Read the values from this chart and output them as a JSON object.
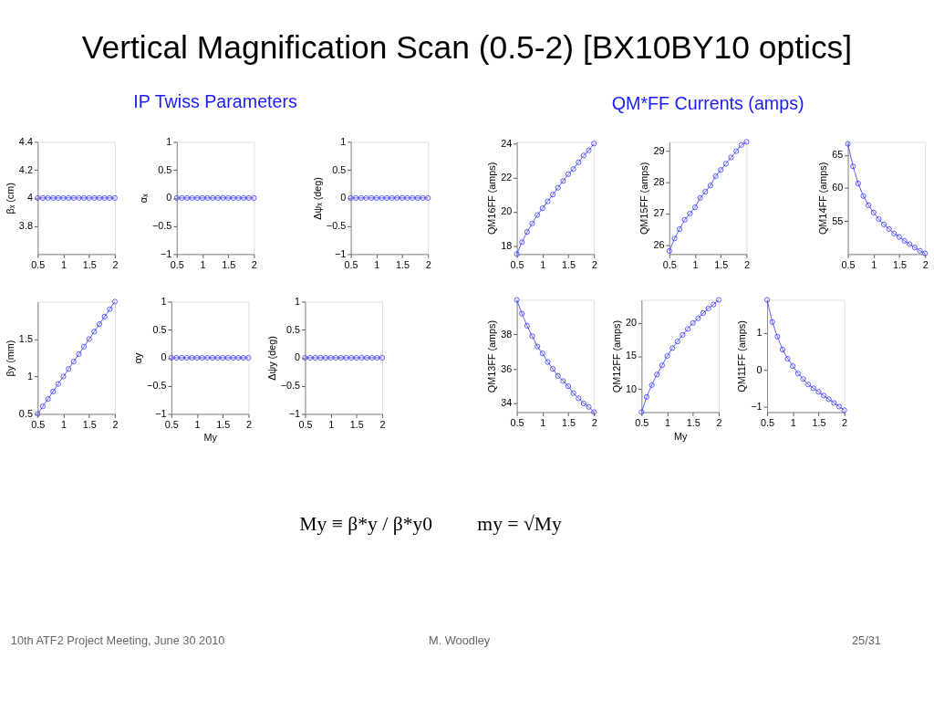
{
  "chart_data": [
    {
      "type": "line",
      "title": "Vertical Magnification Scan (0.5-2) [BX10BY10 optics]",
      "ylabel": "βₓ (cm)",
      "x": [
        0.5,
        0.6,
        0.7,
        0.8,
        0.9,
        1.0,
        1.1,
        1.2,
        1.3,
        1.4,
        1.5,
        1.6,
        1.7,
        1.8,
        1.9,
        2.0
      ],
      "series": [
        {
          "color": "#3333ff",
          "values": [
            4,
            4,
            4,
            4,
            4,
            4,
            4,
            4,
            4,
            4,
            4,
            4,
            4,
            4,
            4,
            4
          ]
        }
      ],
      "xlim": [
        0.5,
        2
      ],
      "xticks": [
        0.5,
        1,
        1.5,
        2
      ],
      "ylim": [
        3.6,
        4.4
      ],
      "yticks": [
        3.8,
        4,
        4.2,
        4.4
      ],
      "marker": "circle",
      "grid": false,
      "annotations": [
        "My ≡ β*y / β*y0",
        "my = √My",
        "10th ATF2 Project Meeting, June 30 2010",
        "M. Woodley",
        "25/31"
      ]
    },
    {
      "type": "line",
      "subtitle": "IP Twiss Parameters",
      "ylabel": "αₓ",
      "x": [
        0.5,
        0.6,
        0.7,
        0.8,
        0.9,
        1.0,
        1.1,
        1.2,
        1.3,
        1.4,
        1.5,
        1.6,
        1.7,
        1.8,
        1.9,
        2.0
      ],
      "series": [
        {
          "color": "#3333ff",
          "values": [
            0,
            0,
            0,
            0,
            0,
            0,
            0,
            0,
            0,
            0,
            0,
            0,
            0,
            0,
            0,
            0
          ]
        }
      ],
      "xlim": [
        0.5,
        2
      ],
      "xticks": [
        0.5,
        1,
        1.5,
        2
      ],
      "ylim": [
        -1,
        1
      ],
      "yticks": [
        -1,
        -0.5,
        0,
        0.5,
        1
      ],
      "marker": "circle",
      "grid": false
    },
    {
      "type": "line",
      "ylabel": "Δψₓ (deg)",
      "x": [
        0.5,
        0.6,
        0.7,
        0.8,
        0.9,
        1.0,
        1.1,
        1.2,
        1.3,
        1.4,
        1.5,
        1.6,
        1.7,
        1.8,
        1.9,
        2.0
      ],
      "series": [
        {
          "color": "#3333ff",
          "values": [
            0,
            0,
            0,
            0,
            0,
            0,
            0,
            0,
            0,
            0,
            0,
            0,
            0,
            0,
            0,
            0
          ]
        }
      ],
      "xlim": [
        0.5,
        2
      ],
      "xticks": [
        0.5,
        1,
        1.5,
        2
      ],
      "ylim": [
        -1,
        1
      ],
      "yticks": [
        -1,
        -0.5,
        0,
        0.5,
        1
      ],
      "marker": "circle",
      "grid": false
    },
    {
      "type": "line",
      "ylabel": "QM16FF (amps)",
      "x": [
        0.5,
        0.6,
        0.7,
        0.8,
        0.9,
        1.0,
        1.1,
        1.2,
        1.3,
        1.4,
        1.5,
        1.6,
        1.7,
        1.8,
        1.9,
        2.0
      ],
      "series": [
        {
          "color": "#3333ff",
          "values": [
            17.5,
            18.2,
            18.8,
            19.3,
            19.8,
            20.2,
            20.6,
            21.0,
            21.4,
            21.8,
            22.2,
            22.5,
            22.9,
            23.3,
            23.6,
            24.0
          ]
        }
      ],
      "xlim": [
        0.5,
        2
      ],
      "xticks": [
        0.5,
        1,
        1.5,
        2
      ],
      "ylim": [
        17.5,
        24.1
      ],
      "yticks": [
        18,
        20,
        22,
        24
      ],
      "marker": "circle",
      "grid": false
    },
    {
      "type": "line",
      "subtitle": "QM*FF Currents (amps)",
      "ylabel": "QM15FF (amps)",
      "x": [
        0.5,
        0.6,
        0.7,
        0.8,
        0.9,
        1.0,
        1.1,
        1.2,
        1.3,
        1.4,
        1.5,
        1.6,
        1.7,
        1.8,
        1.9,
        2.0
      ],
      "series": [
        {
          "color": "#3333ff",
          "values": [
            25.8,
            26.2,
            26.5,
            26.8,
            27.0,
            27.2,
            27.5,
            27.7,
            27.9,
            28.2,
            28.4,
            28.6,
            28.8,
            29.0,
            29.2,
            29.3
          ]
        }
      ],
      "xlim": [
        0.5,
        2
      ],
      "xticks": [
        0.5,
        1,
        1.5,
        2
      ],
      "ylim": [
        25.7,
        29.3
      ],
      "yticks": [
        26,
        27,
        28,
        29
      ],
      "marker": "circle",
      "grid": false
    },
    {
      "type": "line",
      "ylabel": "QM14FF (amps)",
      "x": [
        0.5,
        0.6,
        0.7,
        0.8,
        0.9,
        1.0,
        1.1,
        1.2,
        1.3,
        1.4,
        1.5,
        1.6,
        1.7,
        1.8,
        1.9,
        2.0
      ],
      "series": [
        {
          "color": "#3333ff",
          "values": [
            66.7,
            63.3,
            60.7,
            58.8,
            57.4,
            56.3,
            55.3,
            54.5,
            53.8,
            53.1,
            52.6,
            52.0,
            51.5,
            51.0,
            50.5,
            50.1
          ]
        }
      ],
      "xlim": [
        0.5,
        2
      ],
      "xticks": [
        0.5,
        1,
        1.5,
        2
      ],
      "ylim": [
        50,
        67
      ],
      "yticks": [
        55,
        60,
        65
      ],
      "marker": "circle",
      "grid": false
    },
    {
      "type": "line",
      "ylabel": "βy (mm)",
      "x": [
        0.5,
        0.6,
        0.7,
        0.8,
        0.9,
        1.0,
        1.1,
        1.2,
        1.3,
        1.4,
        1.5,
        1.6,
        1.7,
        1.8,
        1.9,
        2.0
      ],
      "series": [
        {
          "color": "#3333ff",
          "values": [
            0.5,
            0.6,
            0.7,
            0.8,
            0.9,
            1.0,
            1.1,
            1.2,
            1.3,
            1.4,
            1.5,
            1.6,
            1.7,
            1.8,
            1.9,
            2.0
          ]
        }
      ],
      "xlim": [
        0.5,
        2
      ],
      "xticks": [
        0.5,
        1,
        1.5,
        2
      ],
      "ylim": [
        0.5,
        2
      ],
      "yticks": [
        0.5,
        1,
        1.5
      ],
      "marker": "circle",
      "grid": false
    },
    {
      "type": "line",
      "xlabel": "My",
      "ylabel": "αy",
      "x": [
        0.5,
        0.6,
        0.7,
        0.8,
        0.9,
        1.0,
        1.1,
        1.2,
        1.3,
        1.4,
        1.5,
        1.6,
        1.7,
        1.8,
        1.9,
        2.0
      ],
      "series": [
        {
          "color": "#3333ff",
          "values": [
            0,
            0,
            0,
            0,
            0,
            0,
            0,
            0,
            0,
            0,
            0,
            0,
            0,
            0,
            0,
            0
          ]
        }
      ],
      "xlim": [
        0.5,
        2
      ],
      "xticks": [
        0.5,
        1,
        1.5,
        2
      ],
      "ylim": [
        -1,
        1
      ],
      "yticks": [
        -1,
        -0.5,
        0,
        0.5,
        1
      ],
      "marker": "circle",
      "grid": false
    },
    {
      "type": "line",
      "ylabel": "Δψy (deg)",
      "x": [
        0.5,
        0.6,
        0.7,
        0.8,
        0.9,
        1.0,
        1.1,
        1.2,
        1.3,
        1.4,
        1.5,
        1.6,
        1.7,
        1.8,
        1.9,
        2.0
      ],
      "series": [
        {
          "color": "#3333ff",
          "values": [
            0,
            0,
            0,
            0,
            0,
            0,
            0,
            0,
            0,
            0,
            0,
            0,
            0,
            0,
            0,
            0
          ]
        }
      ],
      "xlim": [
        0.5,
        2
      ],
      "xticks": [
        0.5,
        1,
        1.5,
        2
      ],
      "ylim": [
        -1,
        1
      ],
      "yticks": [
        -1,
        -0.5,
        0,
        0.5,
        1
      ],
      "marker": "circle",
      "grid": false
    },
    {
      "type": "line",
      "ylabel": "QM13FF (amps)",
      "x": [
        0.5,
        0.6,
        0.7,
        0.8,
        0.9,
        1.0,
        1.1,
        1.2,
        1.3,
        1.4,
        1.5,
        1.6,
        1.7,
        1.8,
        1.9,
        2.0
      ],
      "series": [
        {
          "color": "#3333ff",
          "values": [
            40.0,
            39.2,
            38.5,
            37.9,
            37.3,
            36.9,
            36.4,
            36.0,
            35.6,
            35.3,
            35.0,
            34.6,
            34.3,
            34.0,
            33.8,
            33.5
          ]
        }
      ],
      "xlim": [
        0.5,
        2
      ],
      "xticks": [
        0.5,
        1,
        1.5,
        2
      ],
      "ylim": [
        33.5,
        40
      ],
      "yticks": [
        34,
        36,
        38
      ],
      "marker": "circle",
      "grid": false
    },
    {
      "type": "line",
      "xlabel": "My",
      "ylabel": "QM12FF (amps)",
      "x": [
        0.5,
        0.6,
        0.7,
        0.8,
        0.9,
        1.0,
        1.1,
        1.2,
        1.3,
        1.4,
        1.5,
        1.6,
        1.7,
        1.8,
        1.9,
        2.0
      ],
      "series": [
        {
          "color": "#3333ff",
          "values": [
            6.5,
            8.8,
            10.6,
            12.2,
            13.6,
            15.0,
            16.2,
            17.2,
            18.2,
            19.1,
            20.0,
            20.7,
            21.5,
            22.2,
            22.8,
            23.5
          ]
        }
      ],
      "xlim": [
        0.5,
        2
      ],
      "xticks": [
        0.5,
        1,
        1.5,
        2
      ],
      "ylim": [
        6.5,
        23.5
      ],
      "yticks": [
        10,
        15,
        20
      ],
      "marker": "circle",
      "grid": false
    },
    {
      "type": "line",
      "ylabel": "QM11FF (amps)",
      "x": [
        0.5,
        0.6,
        0.7,
        0.8,
        0.9,
        1.0,
        1.1,
        1.2,
        1.3,
        1.4,
        1.5,
        1.6,
        1.7,
        1.8,
        1.9,
        2.0
      ],
      "series": [
        {
          "color": "#3333ff",
          "values": [
            1.9,
            1.3,
            0.9,
            0.55,
            0.3,
            0.1,
            -0.1,
            -0.25,
            -0.4,
            -0.5,
            -0.6,
            -0.7,
            -0.8,
            -0.9,
            -1.0,
            -1.1
          ]
        }
      ],
      "xlim": [
        0.5,
        2
      ],
      "xticks": [
        0.5,
        1,
        1.5,
        2
      ],
      "ylim": [
        -1.15,
        1.9
      ],
      "yticks": [
        -1,
        0,
        1
      ],
      "marker": "circle",
      "grid": false
    }
  ]
}
